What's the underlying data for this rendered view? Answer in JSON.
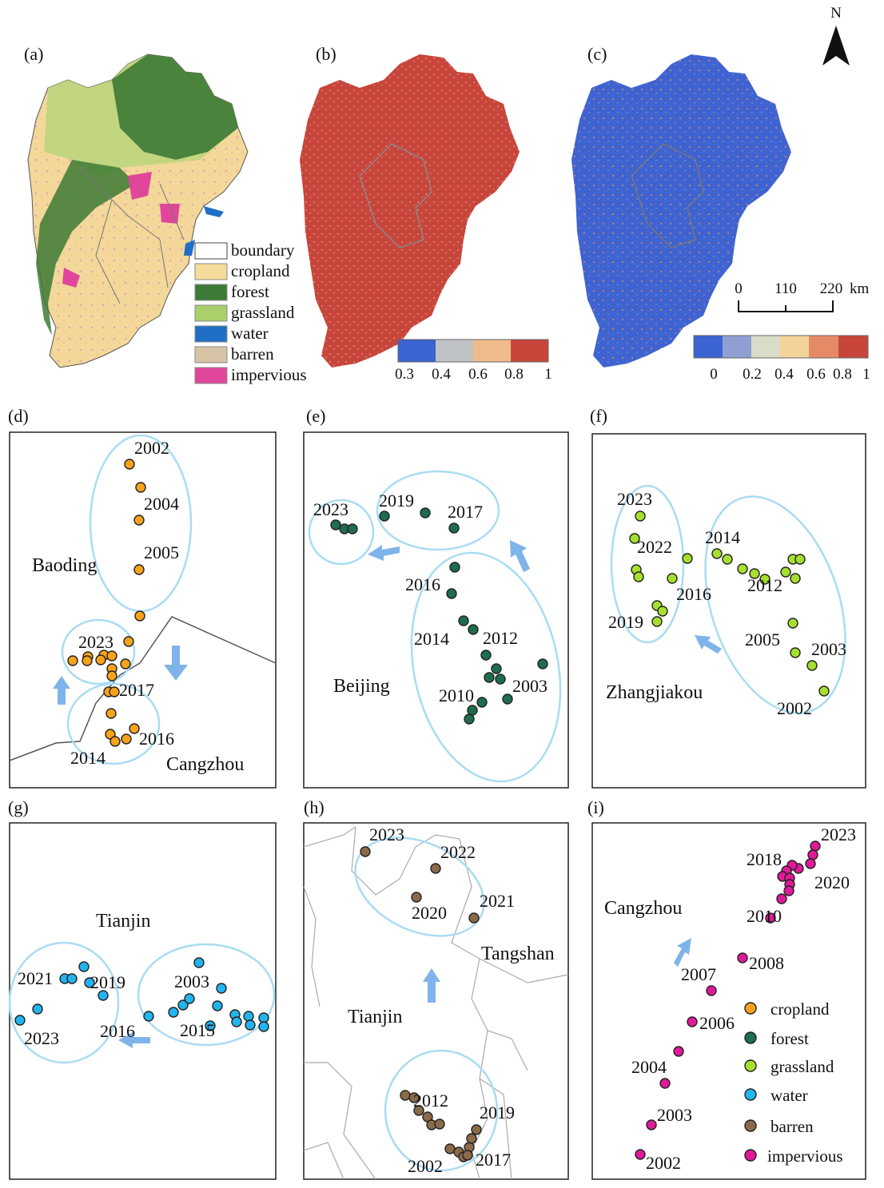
{
  "north_label": "N",
  "panels": {
    "a": "(a)",
    "b": "(b)",
    "c": "(c)",
    "d": "(d)",
    "e": "(e)",
    "f": "(f)",
    "g": "(g)",
    "h": "(h)",
    "i": "(i)"
  },
  "landcover_legend": [
    {
      "label": "boundary",
      "color": "#ffffff"
    },
    {
      "label": "cropland",
      "color": "#f5dc9a"
    },
    {
      "label": "forest",
      "color": "#3d7a35"
    },
    {
      "label": "grassland",
      "color": "#a9d06b"
    },
    {
      "label": "water",
      "color": "#1f6fc6"
    },
    {
      "label": "barren",
      "color": "#d7c4a6"
    },
    {
      "label": "impervious",
      "color": "#e0479a"
    }
  ],
  "colorbar_b": {
    "colors": [
      "#3b63d1",
      "#c0c3c6",
      "#f0bb8a",
      "#c8453b"
    ],
    "ticks": [
      "0.3",
      "0.4",
      "0.6",
      "0.8",
      "1"
    ]
  },
  "colorbar_c": {
    "colors": [
      "#3b63d1",
      "#8f9fd3",
      "#d9dcc8",
      "#f3d39a",
      "#e58a66",
      "#c8453b"
    ],
    "ticks": [
      "0",
      "0.2",
      "0.4",
      "0.6",
      "0.8",
      "1"
    ]
  },
  "scalebar": {
    "ticks": [
      "0",
      "110",
      "220"
    ],
    "unit": "km"
  },
  "trajectories": {
    "d": {
      "city": "Baoding",
      "city2": "Cangzhou",
      "years": [
        "2002",
        "2004",
        "2005",
        "2023",
        "2017",
        "2016",
        "2014"
      ],
      "class": "cropland",
      "color": "#f7a21b"
    },
    "e": {
      "city": "Beijing",
      "years": [
        "2023",
        "2019",
        "2017",
        "2016",
        "2014",
        "2012",
        "2010",
        "2003"
      ],
      "class": "forest",
      "color": "#1e6e4e"
    },
    "f": {
      "city": "Zhangjiakou",
      "years": [
        "2023",
        "2022",
        "2014",
        "2016",
        "2012",
        "2019",
        "2005",
        "2003",
        "2002"
      ],
      "class": "grassland",
      "color": "#a6e02e"
    },
    "g": {
      "city": "Tianjin",
      "years": [
        "2021",
        "2019",
        "2003",
        "2023",
        "2016",
        "2015"
      ],
      "class": "water",
      "color": "#22b4ee"
    },
    "h": {
      "city": "Tianjin",
      "city2": "Tangshan",
      "years": [
        "2023",
        "2022",
        "2021",
        "2020",
        "2012",
        "2019",
        "2002",
        "2017"
      ],
      "class": "barren",
      "color": "#8b6a4a"
    },
    "i": {
      "city": "Cangzhou",
      "years": [
        "2023",
        "2018",
        "2020",
        "2010",
        "2008",
        "2007",
        "2006",
        "2004",
        "2003",
        "2002"
      ],
      "class": "impervious",
      "color": "#e0189a"
    }
  },
  "point_legend": [
    {
      "label": "cropland",
      "color": "#f7a21b"
    },
    {
      "label": "forest",
      "color": "#1e6e4e"
    },
    {
      "label": "grassland",
      "color": "#a6e02e"
    },
    {
      "label": "water",
      "color": "#22b4ee"
    },
    {
      "label": "barren",
      "color": "#8b6a4a"
    },
    {
      "label": "impervious",
      "color": "#e0189a"
    }
  ]
}
